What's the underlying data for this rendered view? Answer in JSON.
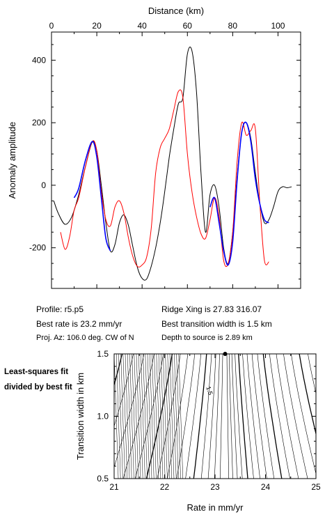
{
  "chart_data": [
    {
      "type": "line",
      "xlabel": "Distance (km)",
      "ylabel": "Anomaly amplitude",
      "xlim": [
        0,
        110
      ],
      "ylim": [
        -330,
        490
      ],
      "xticks": [
        "0",
        "20",
        "40",
        "60",
        "80",
        "100"
      ],
      "yticks": [
        "400",
        "200",
        "0",
        "-200"
      ],
      "series": [
        {
          "color": "#000000",
          "x": [
            1,
            3,
            6,
            9,
            12,
            15,
            18,
            20,
            22,
            24,
            26,
            28,
            30,
            32,
            34,
            36,
            38,
            40,
            42,
            44,
            46,
            48,
            50,
            52,
            54,
            56,
            58,
            60,
            62,
            64,
            66,
            68,
            70,
            72,
            74,
            76,
            78,
            80,
            82,
            84,
            86,
            88,
            90,
            92,
            94,
            96,
            98,
            100,
            102,
            104,
            106
          ],
          "y": [
            -50,
            -90,
            -125,
            -100,
            -30,
            60,
            138,
            110,
            0,
            -120,
            -210,
            -190,
            -120,
            -95,
            -130,
            -200,
            -265,
            -298,
            -300,
            -260,
            -200,
            -120,
            -20,
            90,
            180,
            260,
            280,
            420,
            430,
            300,
            40,
            -150,
            -30,
            0,
            -70,
            -200,
            -250,
            -150,
            30,
            170,
            200,
            150,
            40,
            -60,
            -120,
            -110,
            -70,
            -20,
            -5,
            -8,
            -5
          ]
        },
        {
          "color": "#ff0000",
          "x": [
            4,
            6,
            8,
            10,
            12,
            15,
            18,
            20,
            22,
            24,
            26,
            28,
            30,
            32,
            34,
            36,
            38,
            40,
            42,
            44,
            46,
            48,
            50,
            52,
            54,
            56,
            58,
            60,
            62,
            64,
            66,
            68,
            70,
            72,
            74,
            76,
            78,
            80,
            82,
            84,
            86,
            88,
            90,
            92,
            94,
            96
          ],
          "y": [
            -150,
            -205,
            -165,
            -80,
            -40,
            60,
            140,
            110,
            -20,
            -110,
            -130,
            -70,
            -50,
            -90,
            -170,
            -230,
            -260,
            -255,
            -230,
            -140,
            40,
            120,
            150,
            180,
            240,
            300,
            280,
            100,
            -20,
            -100,
            -155,
            -170,
            -110,
            -40,
            -100,
            -240,
            -250,
            -150,
            80,
            200,
            160,
            175,
            180,
            -60,
            -240,
            -245
          ]
        },
        {
          "color": "#0000ff",
          "x": [
            10,
            12,
            15,
            18,
            20,
            22,
            24,
            26,
            70,
            72,
            74,
            76,
            78,
            80,
            82,
            84,
            86,
            88,
            90,
            92,
            94,
            96
          ],
          "y": [
            -40,
            -10,
            80,
            140,
            90,
            -40,
            -170,
            -210,
            -70,
            -40,
            -120,
            -210,
            -255,
            -180,
            20,
            170,
            200,
            140,
            20,
            -60,
            -110,
            -120
          ]
        }
      ]
    },
    {
      "type": "contour",
      "xlabel": "Rate in mm/yr",
      "ylabel": "Transition width in km",
      "xlim": [
        21,
        25
      ],
      "ylim": [
        0.5,
        1.5
      ],
      "xticks": [
        "21",
        "22",
        "23",
        "24",
        "25"
      ],
      "yticks": [
        "1.5",
        "1.0",
        "0.5"
      ],
      "contour_label": "1.5",
      "best_fit": {
        "rate": 23.2,
        "width": 1.5
      }
    }
  ],
  "info": {
    "profile": "Profile: r5.p5",
    "best_rate": "Best rate is 23.2 mm/yr",
    "proj_az": "Proj. Az: 106.0 deg. CW of N",
    "ridge_xing": "Ridge Xing is 27.83 316.07",
    "transition": "Best transition width is 1.5 km",
    "depth": "Depth to source is   2.89 km"
  },
  "side_label": "Least-squares fit divided by best fit"
}
